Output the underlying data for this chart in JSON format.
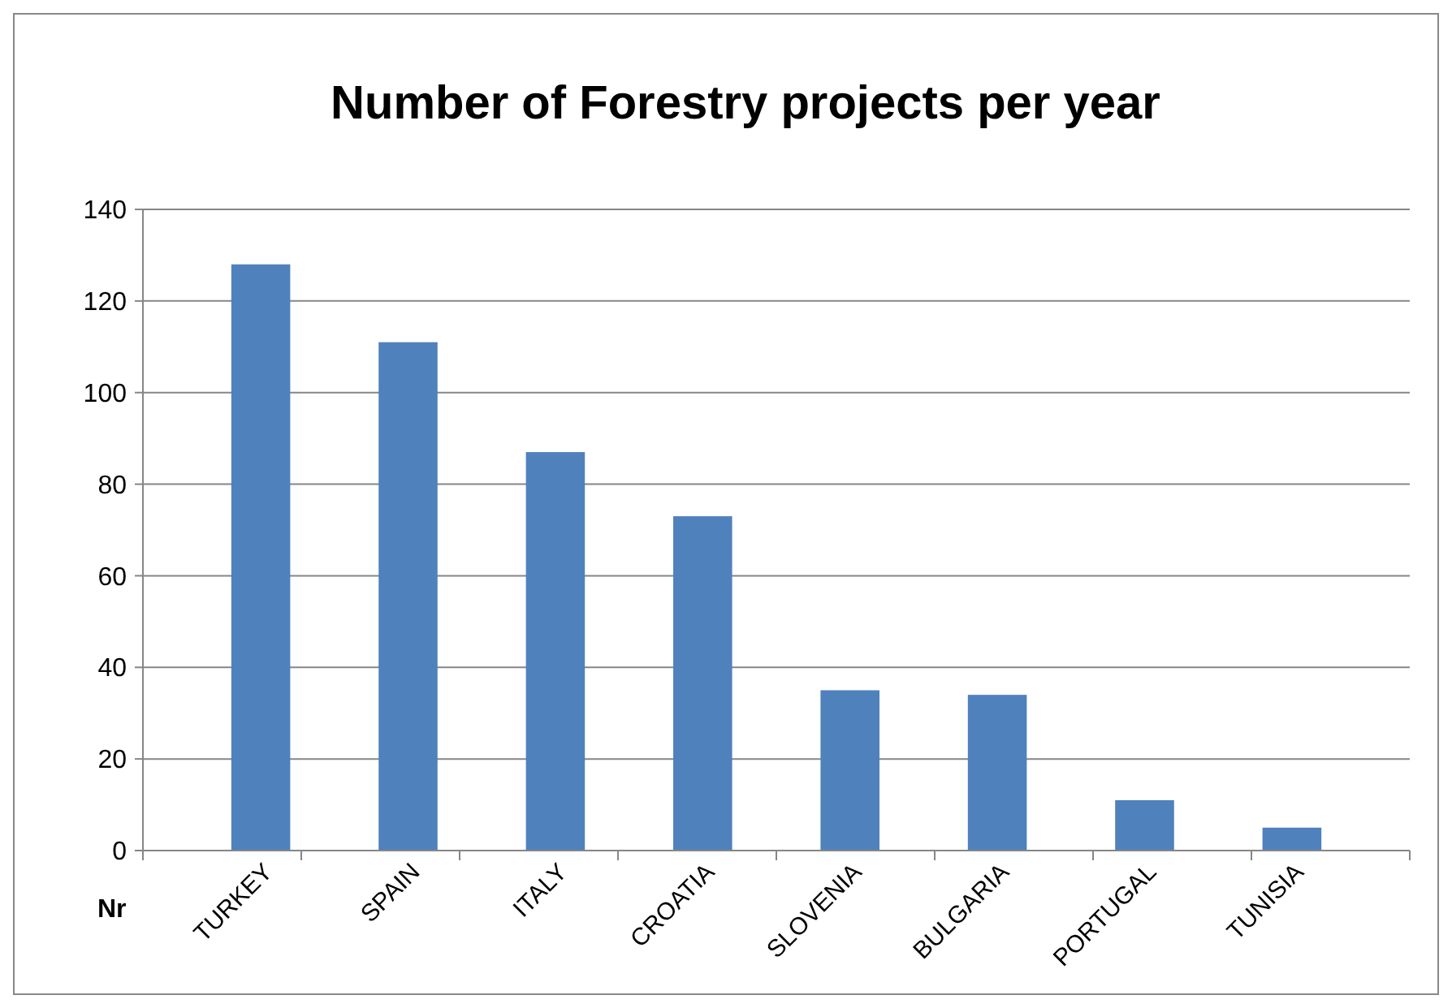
{
  "chart_data": {
    "type": "bar",
    "title": "Number of Forestry projects per year",
    "xlabel": "Nr",
    "categories": [
      "TURKEY",
      "SPAIN",
      "ITALY",
      "CROATIA",
      "SLOVENIA",
      "BULGARIA",
      "PORTUGAL",
      "TUNISIA"
    ],
    "values": [
      128,
      111,
      87,
      73,
      35,
      34,
      11,
      5
    ],
    "color": "#4f81bd",
    "ylim": [
      0,
      140
    ],
    "yticks": [
      0,
      20,
      40,
      60,
      80,
      100,
      120,
      140
    ],
    "grid": "y"
  }
}
